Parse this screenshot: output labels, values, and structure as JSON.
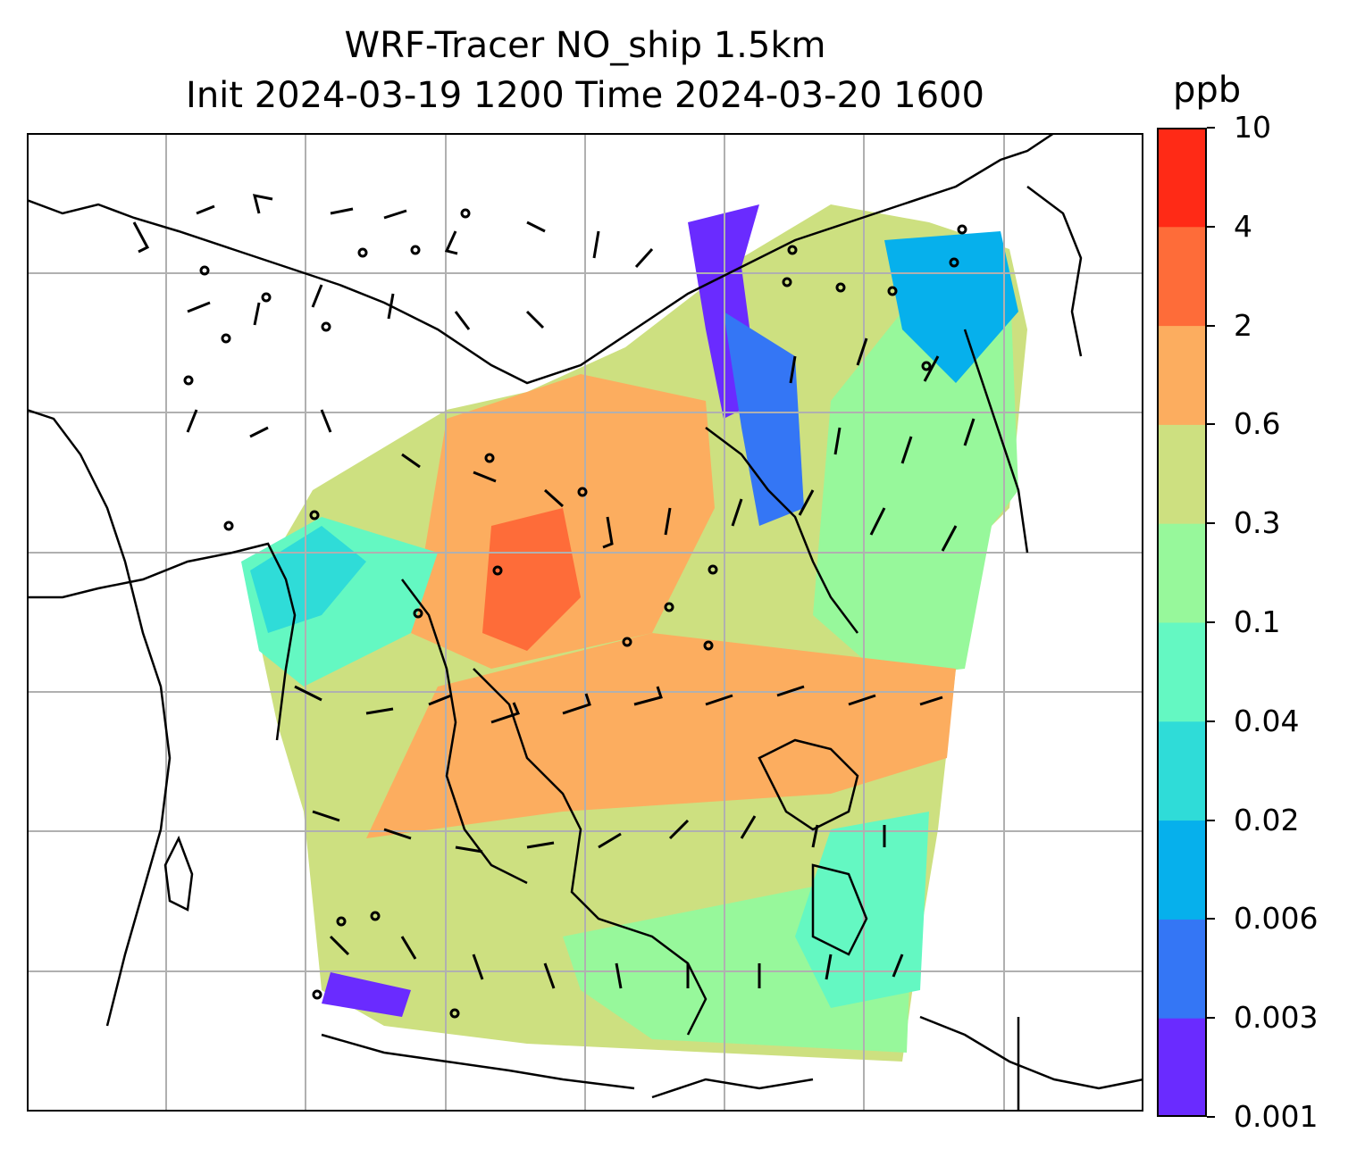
{
  "title_line1": "WRF-Tracer NO_ship 1.5km",
  "title_line2": "Init 2024-03-19 1200 Time 2024-03-20 1600",
  "colorbar": {
    "unit": "ppb",
    "levels": [
      "0.001",
      "0.003",
      "0.006",
      "0.02",
      "0.04",
      "0.1",
      "0.3",
      "0.6",
      "2",
      "4",
      "10"
    ],
    "colors": [
      "#6a2bff",
      "#3476f5",
      "#06b0ec",
      "#2fdcd8",
      "#64f8c2",
      "#97f89b",
      "#cde080",
      "#fcad5f",
      "#fe6c39",
      "#ff2a16"
    ]
  },
  "map": {
    "gridlines": true,
    "wind_barbs": true,
    "calm_markers": true,
    "coastlines": true
  }
}
